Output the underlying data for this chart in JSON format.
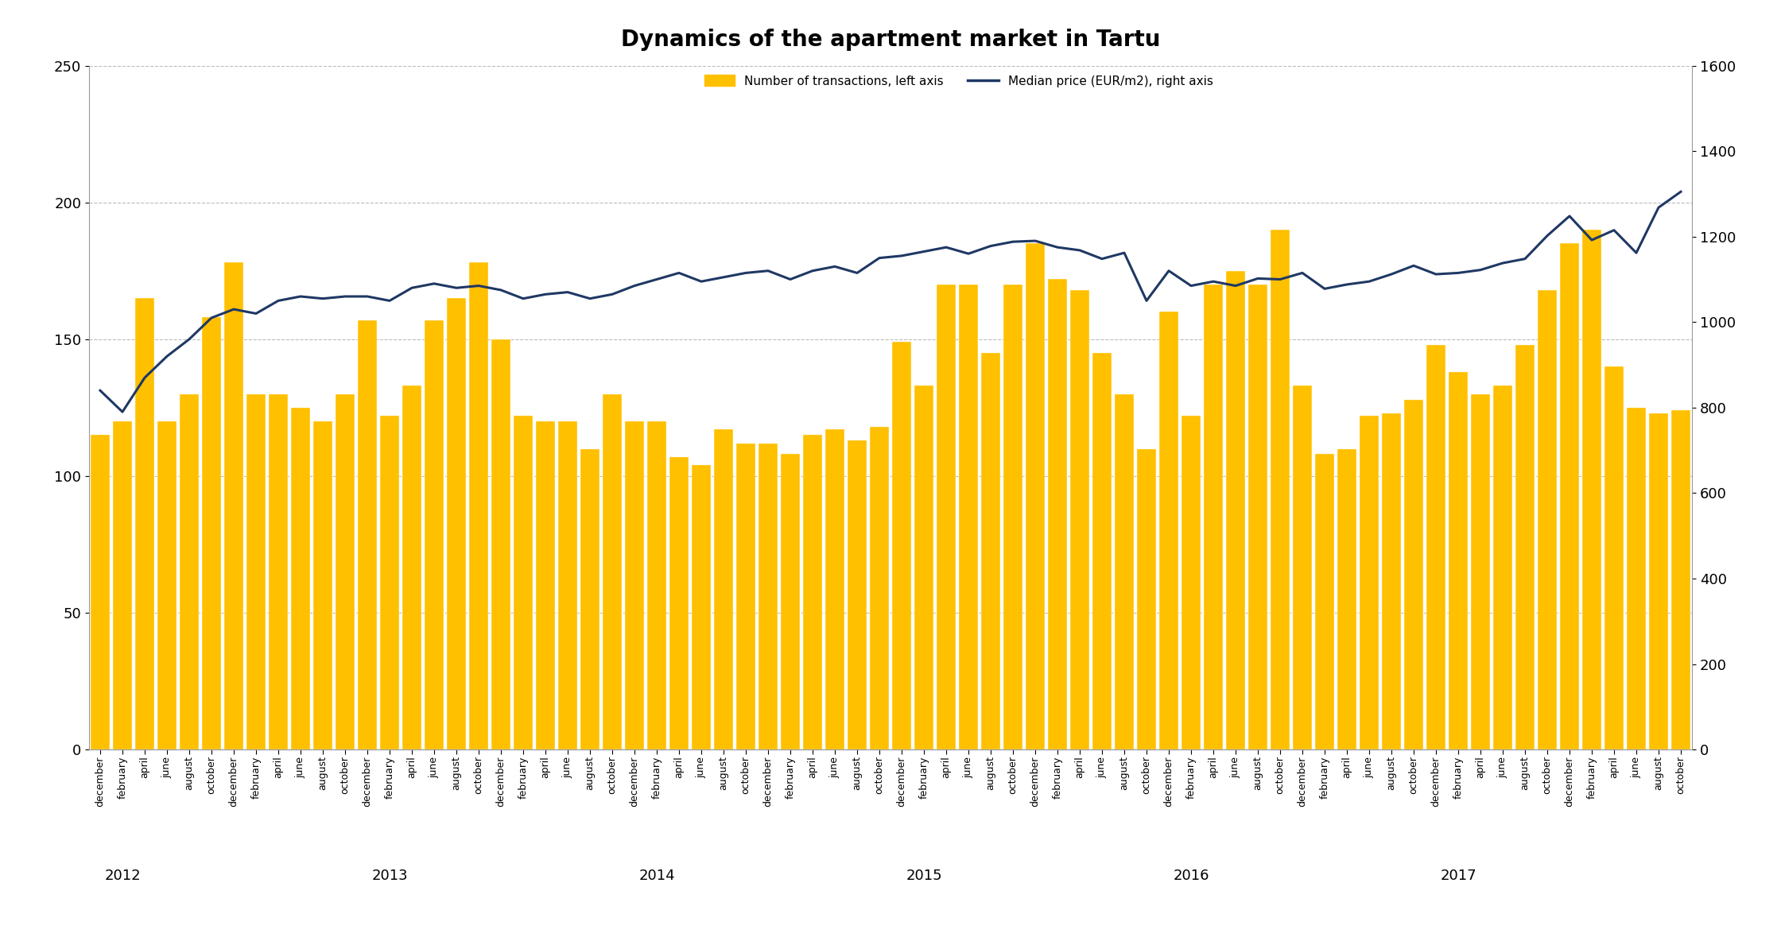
{
  "title": "Dynamics of the apartment market in Tartu",
  "bar_color": "#FFC000",
  "line_color": "#1F3864",
  "bar_label": "Number of transactions, left axis",
  "line_label": "Median price (EUR/m2), right axis",
  "left_ylim": [
    0,
    250
  ],
  "right_ylim": [
    0,
    1600
  ],
  "left_yticks": [
    0,
    50,
    100,
    150,
    200,
    250
  ],
  "right_yticks": [
    0,
    200,
    400,
    600,
    800,
    1000,
    1200,
    1400,
    1600
  ],
  "bar_values": [
    115,
    120,
    165,
    120,
    130,
    158,
    178,
    130,
    130,
    125,
    120,
    130,
    157,
    122,
    133,
    157,
    165,
    178,
    150,
    122,
    120,
    120,
    110,
    130,
    120,
    120,
    107,
    104,
    117,
    112,
    112,
    108,
    115,
    117,
    113,
    118,
    149,
    133,
    170,
    170,
    145,
    170,
    185,
    172,
    168,
    145,
    130,
    110,
    160,
    122,
    170,
    175,
    170,
    190,
    133,
    108,
    110,
    122,
    123,
    128,
    148,
    138,
    130,
    133,
    148,
    168,
    185,
    190,
    140,
    125,
    123,
    124
  ],
  "line_values": [
    840,
    790,
    870,
    920,
    960,
    1010,
    1030,
    1020,
    1050,
    1060,
    1055,
    1060,
    1060,
    1050,
    1080,
    1090,
    1080,
    1085,
    1075,
    1055,
    1065,
    1070,
    1055,
    1065,
    1085,
    1100,
    1115,
    1095,
    1105,
    1115,
    1120,
    1100,
    1120,
    1130,
    1115,
    1150,
    1155,
    1165,
    1175,
    1160,
    1178,
    1188,
    1190,
    1175,
    1168,
    1148,
    1162,
    1050,
    1120,
    1085,
    1095,
    1085,
    1102,
    1100,
    1115,
    1078,
    1088,
    1095,
    1112,
    1132,
    1112,
    1115,
    1122,
    1138,
    1148,
    1202,
    1248,
    1192,
    1215,
    1162,
    1268,
    1305
  ],
  "months": [
    "december",
    "february",
    "april",
    "june",
    "august",
    "october",
    "december",
    "february",
    "april",
    "june",
    "august",
    "october",
    "december",
    "february",
    "april",
    "june",
    "august",
    "october",
    "december",
    "february",
    "april",
    "june",
    "august",
    "october",
    "december",
    "february",
    "april",
    "june",
    "august",
    "october",
    "december",
    "february",
    "april",
    "june",
    "august",
    "october",
    "december",
    "february",
    "april",
    "june",
    "august",
    "october",
    "december",
    "february",
    "april",
    "june",
    "august",
    "october",
    "december",
    "february",
    "april",
    "june",
    "august",
    "october",
    "december",
    "february",
    "april",
    "june",
    "august",
    "october",
    "december",
    "february",
    "april",
    "june",
    "august",
    "october",
    "december",
    "february",
    "april",
    "june",
    "august",
    "october"
  ],
  "year_labels": [
    {
      "year": "2012",
      "index": 0
    },
    {
      "year": "2013",
      "index": 12
    },
    {
      "year": "2014",
      "index": 24
    },
    {
      "year": "2015",
      "index": 36
    },
    {
      "year": "2016",
      "index": 48
    },
    {
      "year": "2017",
      "index": 60
    }
  ],
  "background_color": "#FFFFFF"
}
